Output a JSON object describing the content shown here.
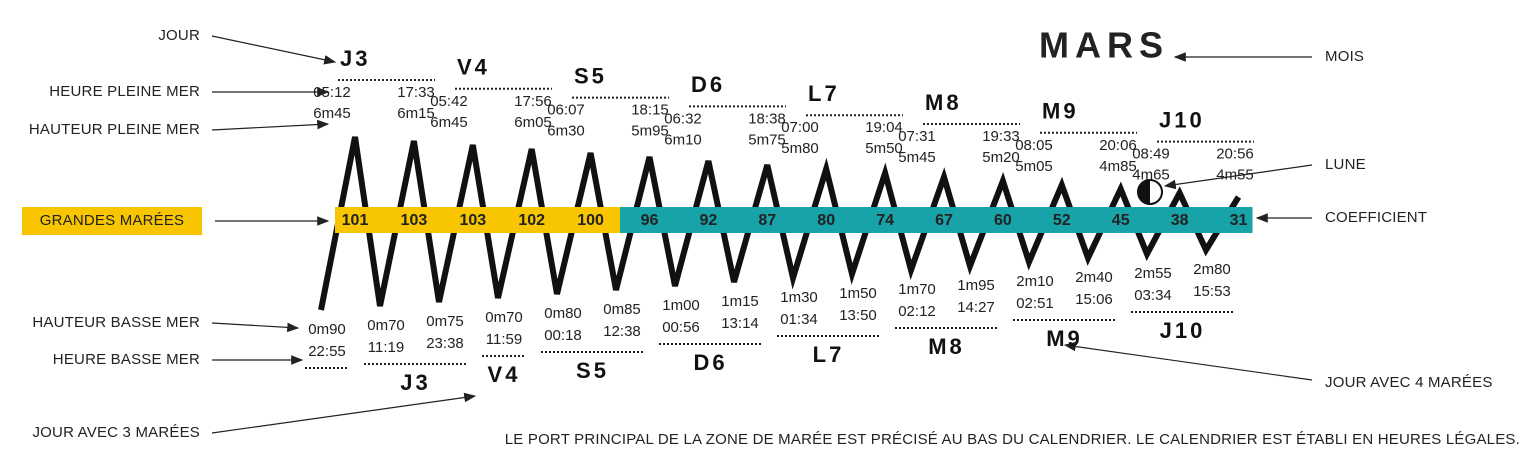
{
  "month": "MARS",
  "labels": {
    "jour": "JOUR",
    "heure_pleine_mer": "HEURE PLEINE MER",
    "hauteur_pleine_mer": "HAUTEUR PLEINE MER",
    "grandes_marees": "GRANDES MARÉES",
    "hauteur_basse_mer": "HAUTEUR BASSE MER",
    "heure_basse_mer": "HEURE BASSE MER",
    "jour_avec_3_marees": "JOUR AVEC 3 MARÉES",
    "mois": "MOIS",
    "lune": "LUNE",
    "coefficient": "COEFFICIENT",
    "jour_avec_4_marees": "JOUR AVEC 4 MARÉES"
  },
  "high_days": [
    {
      "day": "J3",
      "tides": [
        {
          "time": "05:12",
          "height": "6m45"
        },
        {
          "time": "17:33",
          "height": "6m15"
        }
      ]
    },
    {
      "day": "V4",
      "tides": [
        {
          "time": "05:42",
          "height": "6m45"
        },
        {
          "time": "17:56",
          "height": "6m05"
        }
      ]
    },
    {
      "day": "S5",
      "tides": [
        {
          "time": "06:07",
          "height": "6m30"
        },
        {
          "time": "18:15",
          "height": "5m95"
        }
      ]
    },
    {
      "day": "D6",
      "tides": [
        {
          "time": "06:32",
          "height": "6m10"
        },
        {
          "time": "18:38",
          "height": "5m75"
        }
      ]
    },
    {
      "day": "L7",
      "tides": [
        {
          "time": "07:00",
          "height": "5m80"
        },
        {
          "time": "19:04",
          "height": "5m50"
        }
      ]
    },
    {
      "day": "M8",
      "tides": [
        {
          "time": "07:31",
          "height": "5m45"
        },
        {
          "time": "19:33",
          "height": "5m20"
        }
      ]
    },
    {
      "day": "M9",
      "tides": [
        {
          "time": "08:05",
          "height": "5m05"
        },
        {
          "time": "20:06",
          "height": "4m85"
        }
      ]
    },
    {
      "day": "J10",
      "tides": [
        {
          "time": "08:49",
          "height": "4m65"
        },
        {
          "time": "20:56",
          "height": "4m55"
        }
      ]
    }
  ],
  "coefficients": [
    101,
    103,
    103,
    102,
    100,
    96,
    92,
    87,
    80,
    74,
    67,
    60,
    52,
    45,
    38,
    31
  ],
  "low_days": [
    {
      "tides": [
        {
          "height": "0m90",
          "time": "22:55"
        }
      ]
    },
    {
      "day": "J3",
      "tides": [
        {
          "height": "0m70",
          "time": "11:19"
        },
        {
          "height": "0m75",
          "time": "23:38"
        }
      ]
    },
    {
      "day": "V4",
      "tides": [
        {
          "height": "0m70",
          "time": "11:59"
        }
      ]
    },
    {
      "day": "S5",
      "tides": [
        {
          "height": "0m80",
          "time": "00:18"
        },
        {
          "height": "0m85",
          "time": "12:38"
        }
      ]
    },
    {
      "day": "D6",
      "tides": [
        {
          "height": "1m00",
          "time": "00:56"
        },
        {
          "height": "1m15",
          "time": "13:14"
        }
      ]
    },
    {
      "day": "L7",
      "tides": [
        {
          "height": "1m30",
          "time": "01:34"
        },
        {
          "height": "1m50",
          "time": "13:50"
        }
      ]
    },
    {
      "day": "M8",
      "tides": [
        {
          "height": "1m70",
          "time": "02:12"
        },
        {
          "height": "1m95",
          "time": "14:27"
        }
      ]
    },
    {
      "day": "M9",
      "tides": [
        {
          "height": "2m10",
          "time": "02:51"
        },
        {
          "height": "2m40",
          "time": "15:06"
        }
      ]
    },
    {
      "day": "J10",
      "tides": [
        {
          "height": "2m55",
          "time": "03:34"
        },
        {
          "height": "2m80",
          "time": "15:53"
        }
      ]
    }
  ],
  "footer": "LE PORT PRINCIPAL DE LA ZONE DE MARÉE EST PRÉCISÉ AU BAS DU CALENDRIER. LE CALENDRIER EST ÉTABLI EN HEURES LÉGALES."
}
